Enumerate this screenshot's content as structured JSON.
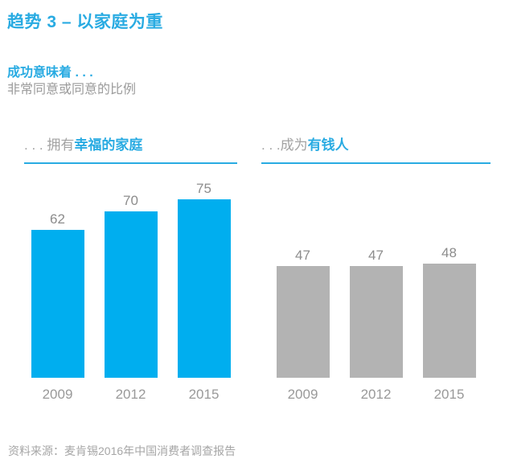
{
  "page": {
    "title": "趋势 3 – 以家庭为重",
    "subtitle_bold": "成功意味着 . . .",
    "subtitle_note": "非常同意或同意的比例",
    "source": "资料来源：麦肯锡2016年中国消费者调查报告"
  },
  "colors": {
    "accent_blue": "#29ABE2",
    "bar_blue": "#00AEEF",
    "bar_gray": "#B3B3B3",
    "value_label_gray": "#8C8C8C"
  },
  "chart_data": [
    {
      "type": "bar",
      "title_prefix": ". . . 拥有",
      "title_highlight": "幸福的家庭",
      "categories": [
        "2009",
        "2012",
        "2015"
      ],
      "values": [
        62,
        70,
        75
      ],
      "bar_color": "#00AEEF",
      "ylim": [
        0,
        80
      ],
      "value_labels": true,
      "grid": false,
      "legend": "none"
    },
    {
      "type": "bar",
      "title_prefix": ". . .成为",
      "title_highlight": "有钱人",
      "categories": [
        "2009",
        "2012",
        "2015"
      ],
      "values": [
        47,
        47,
        48
      ],
      "bar_color": "#B3B3B3",
      "ylim": [
        0,
        80
      ],
      "value_labels": true,
      "grid": false,
      "legend": "none"
    }
  ]
}
